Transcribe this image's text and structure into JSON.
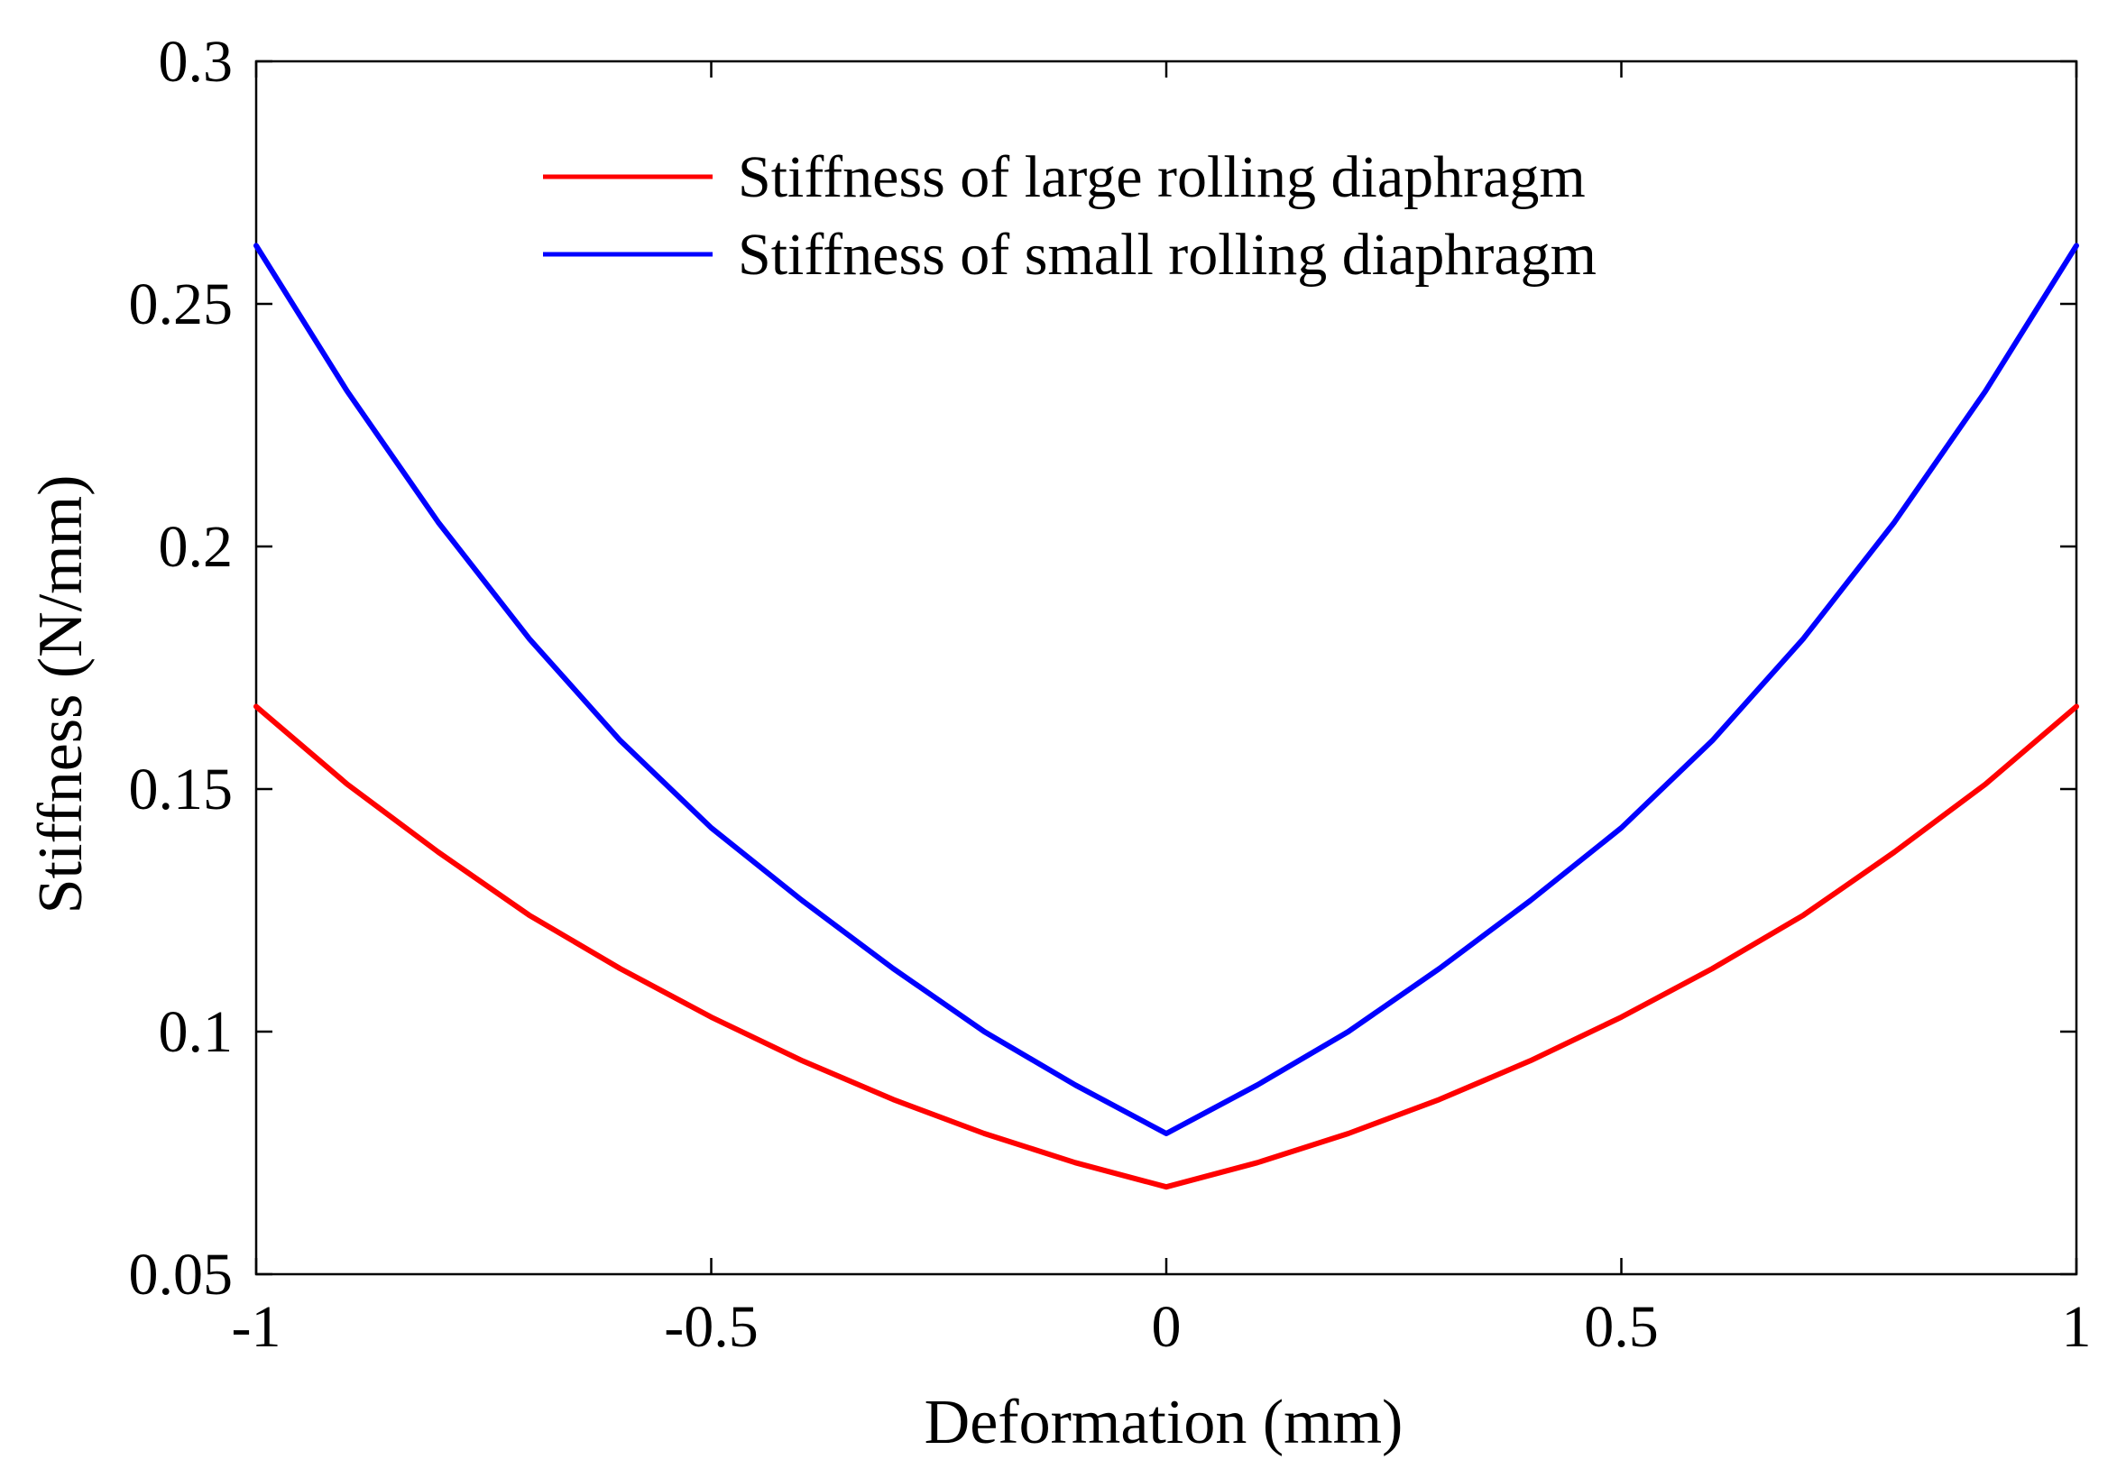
{
  "chart_data": {
    "type": "line",
    "title": "",
    "xlabel": "Deformation (mm)",
    "ylabel": "Stiffness (N/mm)",
    "xlim": [
      -1,
      1
    ],
    "ylim": [
      0.05,
      0.3
    ],
    "xticks": [
      -1,
      -0.5,
      0,
      0.5,
      1
    ],
    "xtick_labels": [
      "-1",
      "-0.5",
      "0",
      "0.5",
      "1"
    ],
    "yticks": [
      0.05,
      0.1,
      0.15,
      0.2,
      0.25,
      0.3
    ],
    "ytick_labels": [
      "0.05",
      "0.1",
      "0.15",
      "0.2",
      "0.25",
      "0.3"
    ],
    "grid": false,
    "legend_position": "top-center",
    "x": [
      -1,
      -0.9,
      -0.8,
      -0.7,
      -0.6,
      -0.5,
      -0.4,
      -0.3,
      -0.2,
      -0.1,
      0,
      0.1,
      0.2,
      0.3,
      0.4,
      0.5,
      0.6,
      0.7,
      0.8,
      0.9,
      1
    ],
    "series": [
      {
        "name": "Stiffness of large rolling diaphragm",
        "color": "#ff0000",
        "values": [
          0.167,
          0.151,
          0.137,
          0.124,
          0.113,
          0.103,
          0.094,
          0.086,
          0.079,
          0.073,
          0.068,
          0.073,
          0.079,
          0.086,
          0.094,
          0.103,
          0.113,
          0.124,
          0.137,
          0.151,
          0.167
        ]
      },
      {
        "name": "Stiffness of small rolling diaphragm",
        "color": "#0000ff",
        "values": [
          0.262,
          0.232,
          0.205,
          0.181,
          0.16,
          0.142,
          0.127,
          0.113,
          0.1,
          0.089,
          0.079,
          0.089,
          0.1,
          0.113,
          0.127,
          0.142,
          0.16,
          0.181,
          0.205,
          0.232,
          0.262
        ]
      }
    ]
  }
}
